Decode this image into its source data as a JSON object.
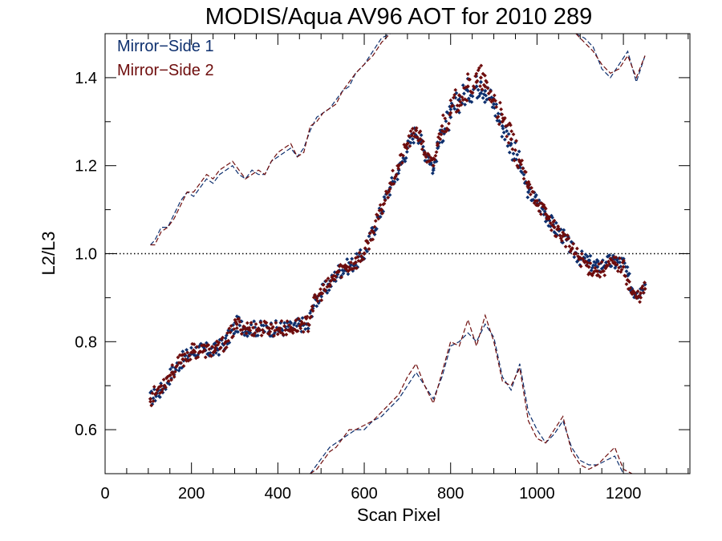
{
  "chart_data": {
    "type": "scatter",
    "title": "MODIS/Aqua AV96 AOT for 2010 289",
    "xlabel": "Scan Pixel",
    "ylabel": "L2/L3",
    "xlim": [
      0,
      1354
    ],
    "ylim": [
      0.5,
      1.5
    ],
    "x_major_ticks": [
      0,
      200,
      400,
      600,
      800,
      1000,
      1200
    ],
    "x_tick_labels": [
      "0",
      "200",
      "400",
      "600",
      "800",
      "1000",
      "1200"
    ],
    "y_major_ticks": [
      0.6,
      0.8,
      1.0,
      1.2,
      1.4
    ],
    "y_tick_labels": [
      "0.6",
      "0.8",
      "1.0",
      "1.2",
      "1.4"
    ],
    "reference_line": {
      "y": 1.0,
      "style": "dotted"
    },
    "legend": {
      "position": "top-left"
    },
    "series": [
      {
        "name": "Mirror−Side 1",
        "color": "#0d2f6e",
        "marker": "diamond",
        "x": [
          105,
          130,
          155,
          180,
          205,
          230,
          255,
          280,
          305,
          330,
          355,
          380,
          405,
          430,
          455,
          470,
          480,
          500,
          520,
          540,
          560,
          580,
          600,
          620,
          640,
          660,
          680,
          700,
          720,
          730,
          740,
          750,
          760,
          770,
          780,
          800,
          820,
          840,
          860,
          870,
          880,
          900,
          920,
          940,
          960,
          980,
          1000,
          1020,
          1040,
          1060,
          1080,
          1100,
          1120,
          1140,
          1160,
          1180,
          1200,
          1210,
          1220,
          1230,
          1240,
          1250
        ],
        "y": [
          0.67,
          0.69,
          0.73,
          0.76,
          0.78,
          0.78,
          0.78,
          0.8,
          0.84,
          0.83,
          0.83,
          0.83,
          0.83,
          0.83,
          0.84,
          0.83,
          0.88,
          0.91,
          0.93,
          0.96,
          0.97,
          0.98,
          1.0,
          1.05,
          1.1,
          1.15,
          1.19,
          1.24,
          1.28,
          1.26,
          1.23,
          1.22,
          1.19,
          1.24,
          1.28,
          1.31,
          1.35,
          1.37,
          1.38,
          1.39,
          1.37,
          1.34,
          1.29,
          1.25,
          1.2,
          1.14,
          1.12,
          1.09,
          1.06,
          1.04,
          1.01,
          0.99,
          0.98,
          0.97,
          0.98,
          0.98,
          0.98,
          0.95,
          0.92,
          0.91,
          0.92,
          0.93
        ]
      },
      {
        "name": "Mirror−Side 2",
        "color": "#6e0d0d",
        "marker": "diamond",
        "x": [
          105,
          130,
          155,
          180,
          205,
          230,
          255,
          280,
          305,
          330,
          355,
          380,
          405,
          430,
          455,
          470,
          480,
          500,
          520,
          540,
          560,
          580,
          600,
          620,
          640,
          660,
          680,
          700,
          720,
          730,
          740,
          750,
          760,
          770,
          780,
          800,
          820,
          840,
          860,
          870,
          880,
          900,
          920,
          940,
          960,
          980,
          1000,
          1020,
          1040,
          1060,
          1080,
          1100,
          1120,
          1140,
          1160,
          1180,
          1200,
          1210,
          1220,
          1230,
          1240,
          1250
        ],
        "y": [
          0.67,
          0.7,
          0.73,
          0.76,
          0.78,
          0.78,
          0.78,
          0.8,
          0.84,
          0.83,
          0.83,
          0.83,
          0.83,
          0.83,
          0.84,
          0.84,
          0.88,
          0.91,
          0.93,
          0.96,
          0.97,
          0.98,
          1.0,
          1.05,
          1.1,
          1.16,
          1.2,
          1.25,
          1.28,
          1.26,
          1.23,
          1.21,
          1.2,
          1.25,
          1.29,
          1.32,
          1.36,
          1.38,
          1.39,
          1.4,
          1.38,
          1.35,
          1.3,
          1.26,
          1.21,
          1.15,
          1.12,
          1.09,
          1.06,
          1.04,
          1.01,
          0.99,
          0.97,
          0.96,
          0.97,
          0.98,
          0.97,
          0.94,
          0.91,
          0.9,
          0.91,
          0.92
        ]
      },
      {
        "name": "",
        "kind": "dashed-line",
        "band": "upper",
        "color": "#0d2f6e",
        "x": [
          105,
          115,
          130,
          145,
          160,
          175,
          190,
          205,
          220,
          235,
          250,
          265,
          280,
          295,
          310,
          325,
          340,
          355,
          370,
          385,
          400,
          415,
          430,
          445,
          460,
          475,
          490,
          505,
          520,
          535,
          550,
          565,
          580,
          600,
          620,
          640,
          660
        ],
        "y": [
          1.02,
          1.03,
          1.06,
          1.06,
          1.09,
          1.12,
          1.14,
          1.13,
          1.15,
          1.17,
          1.16,
          1.18,
          1.19,
          1.2,
          1.18,
          1.17,
          1.19,
          1.18,
          1.18,
          1.21,
          1.22,
          1.23,
          1.24,
          1.22,
          1.24,
          1.28,
          1.31,
          1.32,
          1.33,
          1.35,
          1.37,
          1.38,
          1.41,
          1.43,
          1.46,
          1.49,
          1.5
        ]
      },
      {
        "name": "",
        "kind": "dashed-line",
        "band": "upper",
        "color": "#6e0d0d",
        "x": [
          105,
          115,
          130,
          145,
          160,
          175,
          190,
          205,
          220,
          235,
          250,
          265,
          280,
          295,
          310,
          325,
          340,
          355,
          370,
          385,
          400,
          415,
          430,
          445,
          460,
          475,
          490,
          505,
          520,
          535,
          550,
          565,
          580,
          600,
          620,
          640,
          660
        ],
        "y": [
          1.02,
          1.02,
          1.05,
          1.06,
          1.08,
          1.11,
          1.14,
          1.14,
          1.16,
          1.18,
          1.17,
          1.19,
          1.2,
          1.21,
          1.19,
          1.17,
          1.18,
          1.19,
          1.18,
          1.21,
          1.23,
          1.24,
          1.25,
          1.22,
          1.23,
          1.29,
          1.3,
          1.32,
          1.33,
          1.34,
          1.37,
          1.39,
          1.41,
          1.43,
          1.45,
          1.48,
          1.5
        ]
      },
      {
        "name": "",
        "kind": "dashed-line",
        "band": "upper-right",
        "color": "#0d2f6e",
        "x": [
          1090,
          1110,
          1130,
          1150,
          1170,
          1190,
          1210,
          1230,
          1250
        ],
        "y": [
          1.5,
          1.49,
          1.47,
          1.42,
          1.4,
          1.43,
          1.46,
          1.39,
          1.45
        ]
      },
      {
        "name": "",
        "kind": "dashed-line",
        "band": "upper-right",
        "color": "#6e0d0d",
        "x": [
          1090,
          1110,
          1130,
          1150,
          1170,
          1190,
          1210,
          1230,
          1250
        ],
        "y": [
          1.5,
          1.48,
          1.46,
          1.43,
          1.41,
          1.42,
          1.45,
          1.4,
          1.45
        ]
      },
      {
        "name": "",
        "kind": "dashed-line",
        "band": "lower",
        "color": "#0d2f6e",
        "x": [
          475,
          490,
          505,
          520,
          535,
          550,
          565,
          580,
          600,
          620,
          640,
          660,
          680,
          700,
          720,
          740,
          760,
          780,
          800,
          820,
          840,
          860,
          880,
          900,
          920,
          940,
          960,
          980,
          1000,
          1020,
          1040,
          1060,
          1080,
          1100,
          1120,
          1140,
          1160,
          1180,
          1200,
          1220
        ],
        "y": [
          0.5,
          0.52,
          0.54,
          0.56,
          0.57,
          0.58,
          0.59,
          0.6,
          0.6,
          0.62,
          0.63,
          0.65,
          0.67,
          0.7,
          0.73,
          0.7,
          0.67,
          0.72,
          0.79,
          0.8,
          0.82,
          0.8,
          0.84,
          0.81,
          0.72,
          0.69,
          0.75,
          0.64,
          0.6,
          0.57,
          0.59,
          0.62,
          0.56,
          0.53,
          0.52,
          0.52,
          0.53,
          0.54,
          0.5,
          0.5
        ]
      },
      {
        "name": "",
        "kind": "dashed-line",
        "band": "lower",
        "color": "#6e0d0d",
        "x": [
          475,
          490,
          505,
          520,
          535,
          550,
          565,
          580,
          600,
          620,
          640,
          660,
          680,
          700,
          720,
          740,
          760,
          780,
          800,
          820,
          840,
          860,
          880,
          900,
          920,
          940,
          960,
          980,
          1000,
          1020,
          1040,
          1060,
          1080,
          1100,
          1120,
          1140,
          1160,
          1180,
          1200,
          1220
        ],
        "y": [
          0.5,
          0.51,
          0.53,
          0.55,
          0.56,
          0.58,
          0.6,
          0.6,
          0.61,
          0.62,
          0.64,
          0.66,
          0.68,
          0.72,
          0.75,
          0.7,
          0.66,
          0.73,
          0.8,
          0.79,
          0.85,
          0.79,
          0.86,
          0.8,
          0.71,
          0.7,
          0.74,
          0.62,
          0.58,
          0.57,
          0.6,
          0.63,
          0.55,
          0.52,
          0.51,
          0.52,
          0.54,
          0.56,
          0.51,
          0.5
        ]
      }
    ]
  }
}
